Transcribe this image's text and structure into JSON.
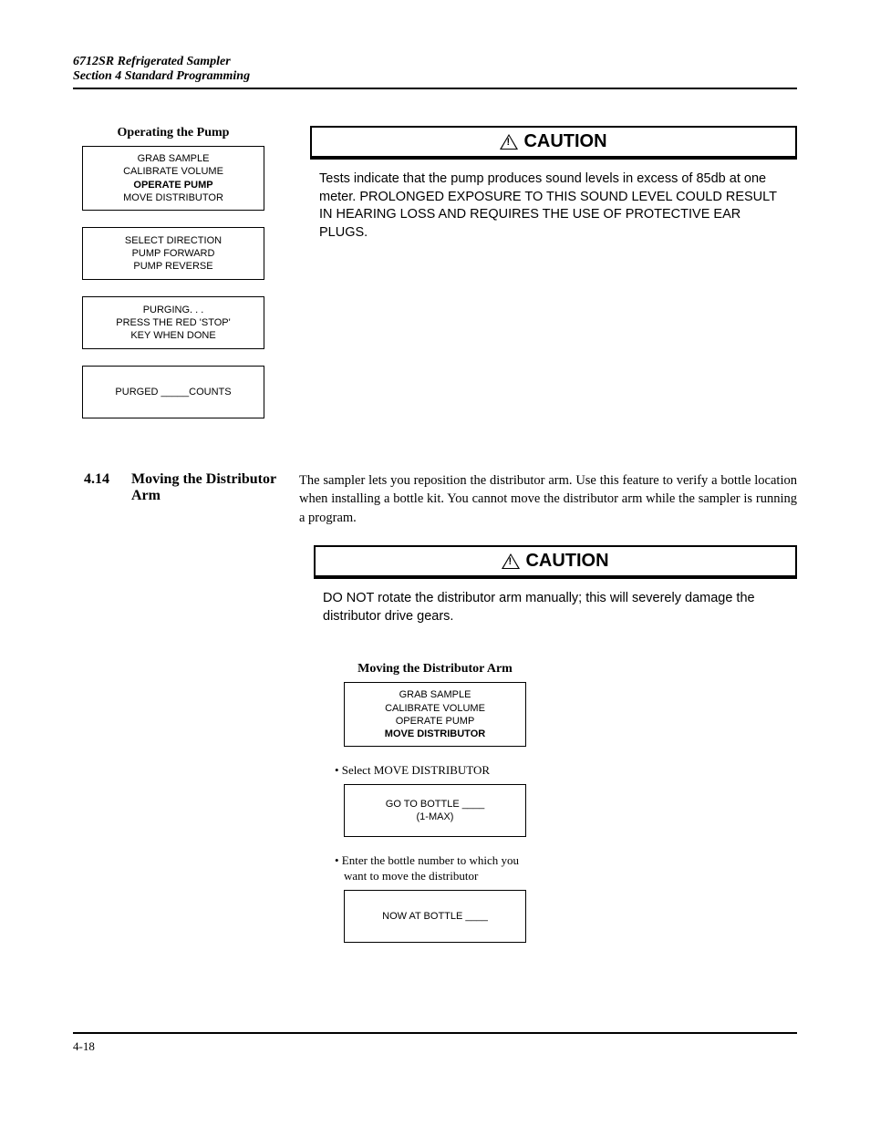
{
  "header": {
    "line1": "6712SR Refrigerated Sampler",
    "line2": "Section 4  Standard Programming"
  },
  "operating_pump": {
    "title": "Operating the Pump",
    "boxes": [
      {
        "lines": [
          "GRAB SAMPLE",
          "CALIBRATE VOLUME",
          "OPERATE PUMP",
          "MOVE DISTRIBUTOR"
        ],
        "bold_index": 2
      },
      {
        "lines": [
          "SELECT DIRECTION",
          "PUMP FORWARD",
          "PUMP REVERSE"
        ],
        "bold_index": -1
      },
      {
        "lines": [
          "PURGING. . .",
          "PRESS THE RED 'STOP'",
          "KEY WHEN DONE"
        ],
        "bold_index": -1
      },
      {
        "lines": [
          "PURGED _____COUNTS"
        ],
        "bold_index": -1
      }
    ]
  },
  "caution1": {
    "label": "CAUTION",
    "body": "Tests indicate that the pump produces sound levels in excess of 85db at one meter. PROLONGED EXPOSURE TO THIS SOUND LEVEL COULD RESULT IN HEARING LOSS AND REQUIRES THE USE OF PROTECTIVE EAR PLUGS."
  },
  "section_414": {
    "number": "4.14",
    "title": "Moving the Distributor Arm",
    "body": "The sampler lets you reposition the distributor arm. Use this feature to verify a bottle location when installing a bottle kit. You cannot move the distributor arm while the sampler is running a program."
  },
  "caution2": {
    "label": "CAUTION",
    "body": "DO NOT rotate the distributor arm manually; this will severely damage the distributor drive gears."
  },
  "moving_distributor": {
    "title": "Moving the Distributor Arm",
    "box1": {
      "lines": [
        "GRAB SAMPLE",
        "CALIBRATE VOLUME",
        "OPERATE PUMP",
        "MOVE DISTRIBUTOR"
      ],
      "bold_index": 3
    },
    "bullet1": "• Select MOVE DISTRIBUTOR",
    "box2": {
      "lines": [
        "GO TO BOTTLE ____",
        "(1-MAX)"
      ],
      "bold_index": -1
    },
    "bullet2": "• Enter the bottle number to which you want to move the distributor",
    "box3": {
      "lines": [
        "NOW AT BOTTLE ____"
      ],
      "bold_index": -1
    }
  },
  "footer": {
    "page": "4-18"
  }
}
